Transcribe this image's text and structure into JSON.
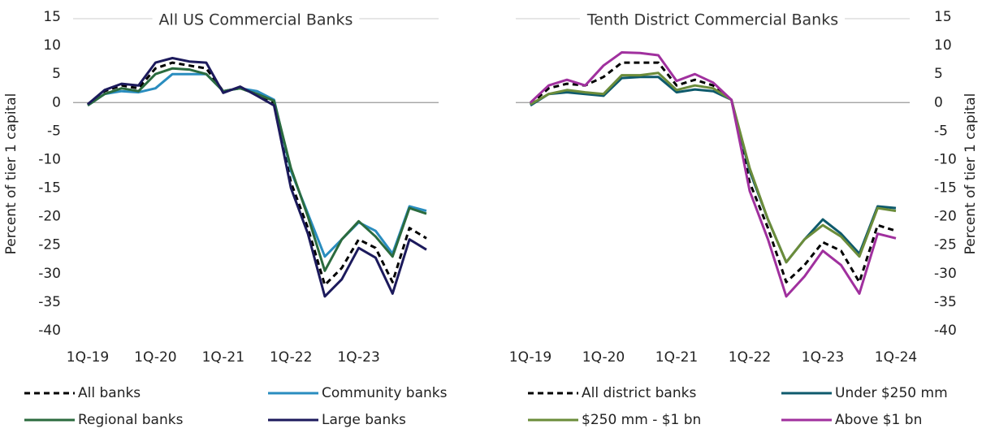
{
  "chart_data": [
    {
      "type": "line",
      "title": "All US Commercial Banks",
      "y_label": "Percent of tier 1 capital",
      "categories": [
        "1Q-19",
        null,
        null,
        null,
        "1Q-20",
        null,
        null,
        null,
        "1Q-21",
        null,
        null,
        null,
        "1Q-22",
        null,
        null,
        null,
        "1Q-23",
        null,
        null,
        null,
        null
      ],
      "ylim": [
        -40,
        15
      ],
      "yticks": [
        15,
        10,
        5,
        0,
        -5,
        -10,
        -15,
        -20,
        -25,
        -30,
        -35,
        -40
      ],
      "y_axis_side": "left",
      "series": [
        {
          "name": "All banks",
          "color": "#000000",
          "style": "dashed",
          "values": [
            -0.3,
            2,
            3,
            2.5,
            6,
            7,
            6.5,
            6,
            2,
            2.5,
            1.5,
            0,
            -14,
            -22,
            -32,
            -29,
            -24,
            -25.5,
            -31.5,
            -22,
            -23.8
          ]
        },
        {
          "name": "Community banks",
          "color": "#2a8dbf",
          "style": "solid",
          "values": [
            -0.5,
            1.5,
            2,
            1.8,
            2.5,
            5,
            5,
            5,
            2,
            2.5,
            2,
            0.5,
            -12,
            -19.5,
            -27,
            -24,
            -21,
            -22.5,
            -26.5,
            -18.2,
            -19
          ]
        },
        {
          "name": "Regional banks",
          "color": "#2b6b3e",
          "style": "solid",
          "values": [
            -0.5,
            1.5,
            2.5,
            2,
            5,
            6,
            5.8,
            5,
            2,
            2.5,
            1.5,
            0.3,
            -11.5,
            -20,
            -29.5,
            -24,
            -20.8,
            -23.5,
            -27,
            -18.5,
            -19.5
          ]
        },
        {
          "name": "Large banks",
          "color": "#1c1a5c",
          "style": "solid",
          "values": [
            -0.3,
            2.2,
            3.3,
            3,
            7,
            7.8,
            7.2,
            7,
            1.7,
            2.8,
            1.2,
            -0.5,
            -15,
            -23,
            -34,
            -31,
            -25.5,
            -27.2,
            -33.5,
            -24,
            -25.8
          ]
        }
      ]
    },
    {
      "type": "line",
      "title": "Tenth District Commercial Banks",
      "y_label": "Percent of tier 1 capital",
      "categories": [
        "1Q-19",
        null,
        null,
        null,
        "1Q-20",
        null,
        null,
        null,
        "1Q-21",
        null,
        null,
        null,
        "1Q-22",
        null,
        null,
        null,
        "1Q-23",
        null,
        null,
        null,
        "1Q-24"
      ],
      "ylim": [
        -40,
        15
      ],
      "yticks": [
        15,
        10,
        5,
        0,
        -5,
        -10,
        -15,
        -20,
        -25,
        -30,
        -35,
        -40
      ],
      "y_axis_side": "right",
      "series": [
        {
          "name": "All district banks",
          "color": "#000000",
          "style": "dashed",
          "values": [
            -0.3,
            2.5,
            3.3,
            3,
            4.5,
            7,
            7,
            7,
            3,
            4,
            3,
            0.5,
            -14,
            -22,
            -31.5,
            -28.5,
            -24.5,
            -26,
            -31.5,
            -21.5,
            -22.5
          ]
        },
        {
          "name": "Under $250 mm",
          "color": "#0e5a6c",
          "style": "solid",
          "values": [
            -0.5,
            1.5,
            1.8,
            1.5,
            1.2,
            4.3,
            4.5,
            4.5,
            1.8,
            2.3,
            2,
            0.5,
            -12,
            -20.5,
            -28,
            -24,
            -20.5,
            -23,
            -26.5,
            -18.2,
            -18.5
          ]
        },
        {
          "name": "$250 mm - $1 bn",
          "color": "#6b8c3a",
          "style": "solid",
          "values": [
            -0.3,
            1.5,
            2.2,
            1.8,
            1.5,
            4.8,
            4.8,
            5.2,
            2.2,
            3,
            2.5,
            0.5,
            -11.5,
            -20.5,
            -28,
            -24,
            -21.5,
            -23.5,
            -27,
            -18.5,
            -19
          ]
        },
        {
          "name": "Above $1 bn",
          "color": "#a0309e",
          "style": "solid",
          "values": [
            0,
            3,
            4,
            3,
            6.5,
            8.8,
            8.7,
            8.3,
            3.8,
            5,
            3.5,
            0.5,
            -15.5,
            -24,
            -34,
            -30.5,
            -26,
            -28.5,
            -33.5,
            -23,
            -23.8
          ]
        }
      ]
    }
  ]
}
